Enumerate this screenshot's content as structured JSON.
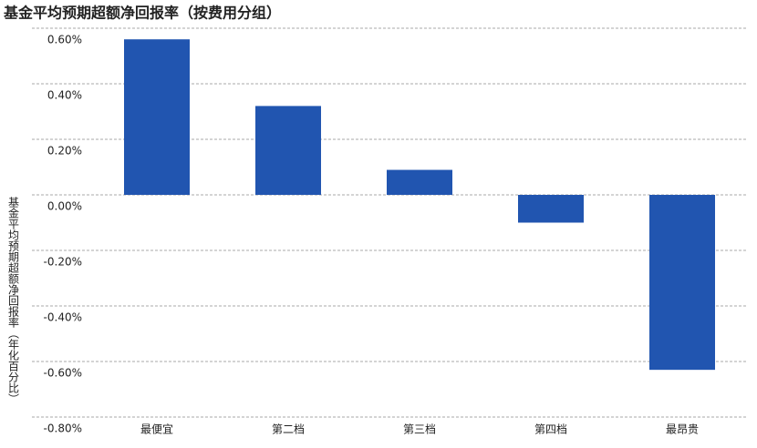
{
  "chart_data": {
    "type": "bar",
    "title": "基金平均预期超额净回报率（按费用分组）",
    "y_label": "基金平均预期超额净回报率（年化百分比）",
    "categories": [
      "最便宜",
      "第二档",
      "第三档",
      "第四档",
      "最昂贵"
    ],
    "values": [
      0.56,
      0.32,
      0.09,
      -0.1,
      -0.63
    ],
    "color": "#2155b0",
    "ylim": [
      -0.8,
      0.6
    ],
    "yticks": [
      {
        "value": 0.6,
        "label": "0.60%"
      },
      {
        "value": 0.4,
        "label": "0.40%"
      },
      {
        "value": 0.2,
        "label": "0.20%"
      },
      {
        "value": 0,
        "label": "0.00%"
      },
      {
        "value": -0.2,
        "label": "-0.20%"
      },
      {
        "value": -0.4,
        "label": "-0.40%"
      },
      {
        "value": -0.6,
        "label": "-0.60%"
      },
      {
        "value": -0.8,
        "label": "-0.80%"
      }
    ],
    "grid": true
  }
}
